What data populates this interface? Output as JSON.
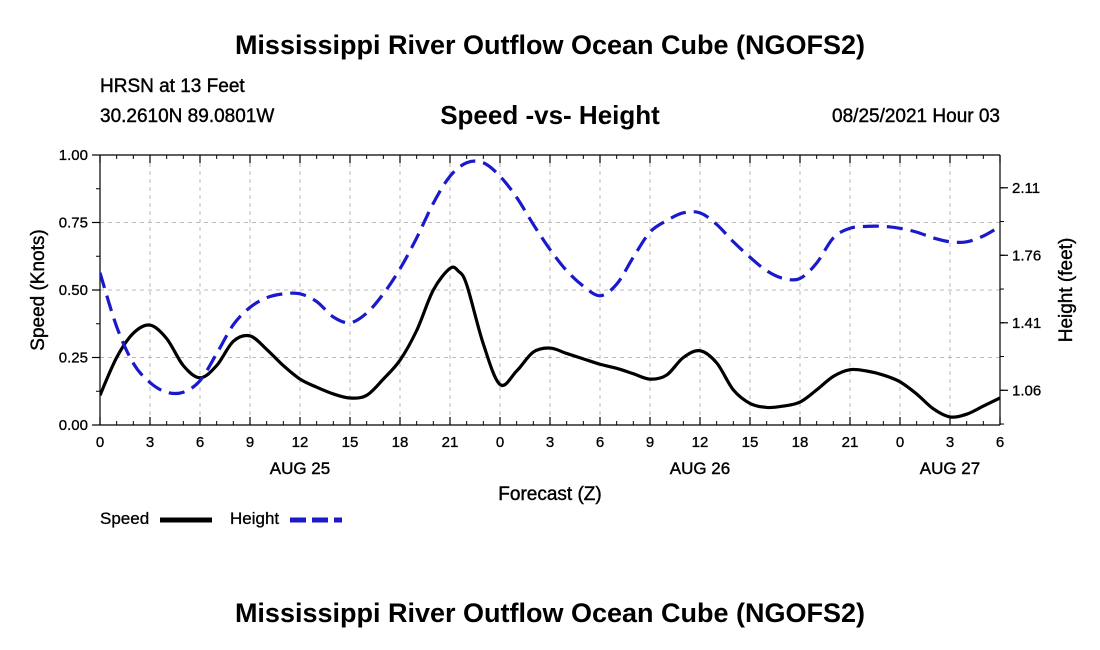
{
  "page": {
    "title_top": "Mississippi River Outflow Ocean Cube (NGOFS2)",
    "title_bottom": "Mississippi River Outflow Ocean Cube (NGOFS2)",
    "station": "HRSN at 13 Feet",
    "coords": "30.2610N  89.0801W",
    "chart_title": "Speed -vs- Height",
    "timestamp": "08/25/2021 Hour 03"
  },
  "colors": {
    "speed": "#000000",
    "height": "#1a1acc",
    "grid": "#bbbbbb"
  },
  "chart_data": {
    "type": "line",
    "title": "Speed -vs- Height",
    "xlabel": "Forecast (Z)",
    "ylabel": "Speed (Knots)",
    "y2label": "Height (feet)",
    "xlim": [
      0,
      54
    ],
    "ylim": [
      0,
      1
    ],
    "y2lim": [
      0.88,
      2.28
    ],
    "grid": true,
    "legend_position": "bottom-left",
    "x_ticks": [
      0,
      3,
      6,
      9,
      12,
      15,
      18,
      21,
      24,
      27,
      30,
      33,
      36,
      39,
      42,
      45,
      48,
      51,
      54
    ],
    "x_tick_labels": [
      "0",
      "3",
      "6",
      "9",
      "12",
      "15",
      "18",
      "21",
      "0",
      "3",
      "6",
      "9",
      "12",
      "15",
      "18",
      "21",
      "0",
      "3",
      "6"
    ],
    "y_ticks": [
      0,
      0.25,
      0.5,
      0.75,
      1.0
    ],
    "y_tick_labels": [
      "0.00",
      "0.25",
      "0.50",
      "0.75",
      "1.00"
    ],
    "y2_ticks": [
      1.06,
      1.41,
      1.76,
      2.11
    ],
    "y2_tick_labels": [
      "1.06",
      "1.41",
      "1.76",
      "2.11"
    ],
    "date_labels": [
      {
        "x": 12,
        "label": "AUG 25"
      },
      {
        "x": 36,
        "label": "AUG 26"
      },
      {
        "x": 51,
        "label": "AUG 27"
      }
    ],
    "series": [
      {
        "name": "Speed",
        "axis": "left",
        "style": "solid",
        "x": [
          0,
          1,
          2,
          3,
          4,
          5,
          6,
          7,
          8,
          9,
          10,
          11,
          12,
          13,
          14,
          15,
          16,
          17,
          18,
          19,
          20,
          21,
          21.5,
          22,
          23,
          24,
          25,
          26,
          27,
          28,
          29,
          30,
          31,
          32,
          33,
          34,
          35,
          36,
          37,
          38,
          39,
          40,
          41,
          42,
          43,
          44,
          45,
          46,
          47,
          48,
          49,
          50,
          51,
          52,
          53,
          54
        ],
        "values": [
          0.11,
          0.25,
          0.34,
          0.37,
          0.32,
          0.22,
          0.175,
          0.22,
          0.31,
          0.33,
          0.28,
          0.22,
          0.17,
          0.14,
          0.115,
          0.1,
          0.11,
          0.17,
          0.24,
          0.35,
          0.5,
          0.58,
          0.57,
          0.52,
          0.3,
          0.15,
          0.2,
          0.27,
          0.285,
          0.265,
          0.245,
          0.225,
          0.21,
          0.19,
          0.17,
          0.185,
          0.25,
          0.275,
          0.23,
          0.13,
          0.08,
          0.065,
          0.07,
          0.085,
          0.13,
          0.18,
          0.205,
          0.2,
          0.185,
          0.16,
          0.115,
          0.06,
          0.03,
          0.04,
          0.07,
          0.1
        ]
      },
      {
        "name": "Height",
        "axis": "right",
        "style": "dashed",
        "x": [
          0,
          1,
          2,
          3,
          4,
          5,
          6,
          7,
          8,
          9,
          10,
          11,
          12,
          13,
          14,
          15,
          16,
          17,
          18,
          19,
          20,
          21,
          22,
          23,
          24,
          25,
          26,
          27,
          28,
          29,
          30,
          31,
          32,
          33,
          34,
          35,
          36,
          37,
          38,
          39,
          40,
          41,
          42,
          43,
          44,
          45,
          46,
          47,
          48,
          49,
          50,
          51,
          52,
          53,
          54
        ],
        "values": [
          1.67,
          1.39,
          1.2,
          1.1,
          1.05,
          1.05,
          1.11,
          1.25,
          1.4,
          1.49,
          1.54,
          1.56,
          1.56,
          1.52,
          1.44,
          1.41,
          1.46,
          1.56,
          1.69,
          1.85,
          2.03,
          2.17,
          2.24,
          2.24,
          2.17,
          2.06,
          1.92,
          1.79,
          1.68,
          1.6,
          1.55,
          1.61,
          1.75,
          1.88,
          1.94,
          1.98,
          1.98,
          1.92,
          1.83,
          1.75,
          1.68,
          1.64,
          1.64,
          1.72,
          1.85,
          1.9,
          1.91,
          1.91,
          1.9,
          1.88,
          1.85,
          1.83,
          1.83,
          1.86,
          1.91
        ]
      }
    ],
    "legend": [
      {
        "name": "Speed",
        "style": "solid"
      },
      {
        "name": "Height",
        "style": "dashed"
      }
    ]
  }
}
